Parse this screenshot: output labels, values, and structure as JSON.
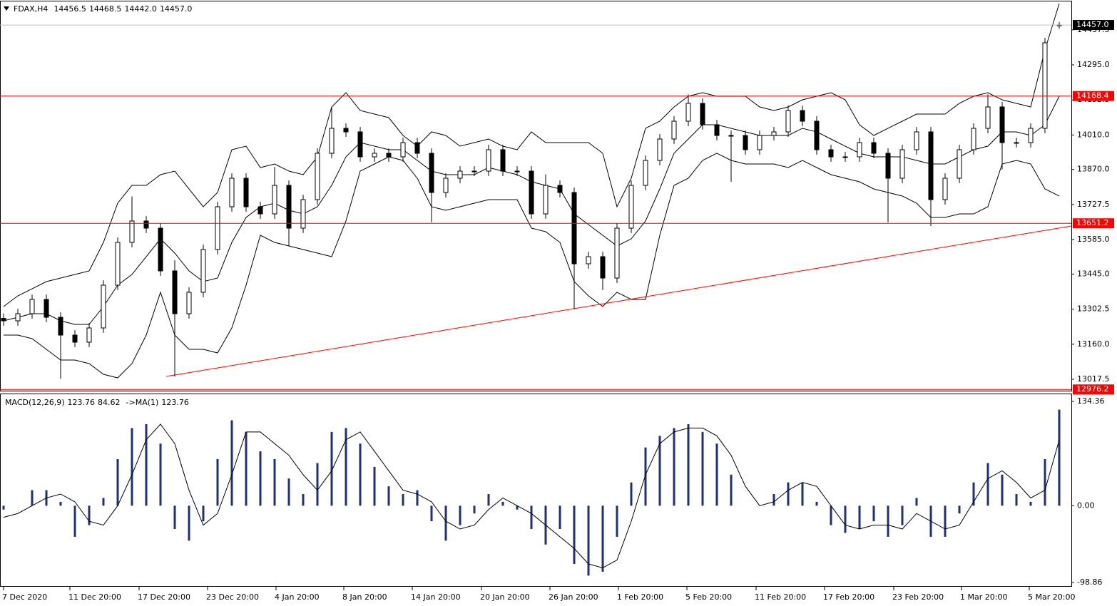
{
  "chart_data": [
    {
      "type": "candlestick",
      "title": "FDAX,H4",
      "last_labels": [
        "14456.5",
        "14468.5",
        "14442.0",
        "14457.0"
      ],
      "open": [
        13265.0,
        13255.0,
        13283.9,
        13341.9,
        13269.5,
        13197.0,
        13168.1,
        13226.0,
        13399.8,
        13573.6,
        13660.6,
        13631.6,
        13457.8,
        13283.9,
        13370.9,
        13544.7,
        13718.5,
        13834.4,
        13718.5,
        13689.5,
        13805.4,
        13631.6,
        13747.5,
        13935.8,
        14037.2,
        14022.7,
        13921.3,
        13935.8,
        13921.3,
        13979.2,
        13935.8,
        13776.4,
        13834.4,
        13863.3,
        13863.3,
        13950.3,
        13863.3,
        13863.3,
        13689.5,
        13805.4,
        13776.4,
        13486.7,
        13515.7,
        13428.8,
        13631.6,
        13805.4,
        13906.8,
        13993.7,
        14066.1,
        14138.6,
        14051.7,
        14008.2,
        14008.2,
        13950.3,
        14008.2,
        14022.7,
        14109.6,
        14066.1,
        13950.3,
        13921.3,
        13921.3,
        13979.2,
        13935.8,
        13834.4,
        13950.3,
        14022.7,
        13747.5,
        13834.4,
        13950.3,
        14037.2,
        14124.1,
        13979.2,
        13979.2,
        14037.2,
        14456.5
      ],
      "high": [
        13285.0,
        13303.9,
        13361.9,
        13361.9,
        13289.5,
        13217.0,
        13246.0,
        13419.8,
        13593.6,
        13760.0,
        13680.6,
        13651.6,
        13501.0,
        13390.9,
        13564.7,
        13738.5,
        13854.4,
        13854.4,
        13738.5,
        13880.0,
        13825.4,
        13767.5,
        13955.8,
        14124.0,
        14057.2,
        14042.7,
        13955.8,
        13955.8,
        13999.2,
        13999.2,
        13955.8,
        13854.4,
        13883.3,
        13883.3,
        13970.3,
        13970.3,
        13883.3,
        13883.3,
        13850.0,
        13825.4,
        13796.4,
        13535.7,
        13535.7,
        13651.6,
        13825.4,
        13926.8,
        14013.7,
        14086.1,
        14175.0,
        14158.6,
        14071.7,
        14028.2,
        14028.2,
        14028.2,
        14042.7,
        14129.6,
        14129.6,
        14086.1,
        13970.3,
        13941.3,
        13999.2,
        13999.2,
        13955.8,
        13970.3,
        14042.7,
        14042.7,
        13854.4,
        13970.3,
        14057.2,
        14175.0,
        14144.1,
        13999.2,
        14057.2,
        14404.8,
        14468.5
      ],
      "low": [
        13235.0,
        13235.0,
        13263.9,
        13249.5,
        13020.0,
        13148.1,
        13148.1,
        13206.0,
        13379.8,
        13553.6,
        13611.6,
        13437.8,
        13029.0,
        13263.9,
        13350.9,
        13524.7,
        13698.5,
        13698.5,
        13669.5,
        13669.5,
        13559.0,
        13611.6,
        13727.5,
        13915.8,
        14002.7,
        13901.3,
        13901.3,
        13901.3,
        13901.3,
        13915.8,
        13655.0,
        13756.4,
        13814.4,
        13843.3,
        13843.3,
        13843.3,
        13843.3,
        13669.5,
        13669.5,
        13756.4,
        13302.0,
        13466.7,
        13380.0,
        13408.8,
        13611.6,
        13785.4,
        13886.8,
        13973.7,
        14046.1,
        14031.7,
        13988.2,
        13820.0,
        13930.3,
        13930.3,
        13988.2,
        14002.7,
        14046.1,
        13930.3,
        13901.3,
        13901.3,
        13901.3,
        13915.8,
        13655.0,
        13814.4,
        13930.3,
        13640.0,
        13727.5,
        13814.4,
        13930.3,
        14017.2,
        13870.0,
        13959.2,
        13959.2,
        14017.2,
        14442.0
      ],
      "close": [
        13255.0,
        13283.9,
        13341.9,
        13269.5,
        13197.0,
        13168.1,
        13226.0,
        13399.8,
        13573.6,
        13660.6,
        13631.6,
        13457.8,
        13283.9,
        13370.9,
        13544.7,
        13718.5,
        13834.4,
        13718.5,
        13689.5,
        13805.4,
        13631.6,
        13747.5,
        13935.8,
        14037.2,
        14022.7,
        13921.3,
        13935.8,
        13921.3,
        13979.2,
        13935.8,
        13776.4,
        13834.4,
        13863.3,
        13863.3,
        13950.3,
        13863.3,
        13863.3,
        13689.5,
        13805.4,
        13776.4,
        13486.7,
        13515.7,
        13428.8,
        13631.6,
        13805.4,
        13906.8,
        13993.7,
        14066.1,
        14138.6,
        14051.7,
        14008.2,
        14008.2,
        13950.3,
        14008.2,
        14022.7,
        14109.6,
        14066.1,
        13950.3,
        13921.3,
        13921.3,
        13979.2,
        13935.8,
        13834.4,
        13950.3,
        14022.7,
        13747.5,
        13834.4,
        13950.3,
        14037.2,
        14124.1,
        13979.2,
        13979.2,
        14037.2,
        14384.8,
        14457.0
      ],
      "bands": {
        "upper": [
          13312.9,
          13356.4,
          13385.3,
          13414.3,
          13428.8,
          13443.3,
          13457.8,
          13573.6,
          13733.0,
          13805.4,
          13805.4,
          13848.9,
          13863.3,
          13790.9,
          13718.5,
          13776.4,
          13950.3,
          13964.7,
          13877.8,
          13892.3,
          13863.3,
          13848.9,
          13921.3,
          14124.1,
          14182.0,
          14109.6,
          14095.1,
          14080.6,
          14008.2,
          13964.7,
          14022.7,
          14008.2,
          13964.7,
          13979.2,
          13993.7,
          13964.7,
          13950.3,
          14022.7,
          13979.2,
          13979.2,
          13979.2,
          13979.2,
          13935.8,
          13718.5,
          13834.4,
          14037.2,
          14066.1,
          14124.1,
          14167.5,
          14182.0,
          14167.5,
          14167.5,
          14167.5,
          14124.1,
          14109.6,
          14124.1,
          14153.0,
          14167.5,
          14182.0,
          14153.0,
          14051.7,
          14008.2,
          14037.2,
          14066.1,
          14095.1,
          14095.1,
          14095.1,
          14138.6,
          14167.5,
          14182.0,
          14153.0,
          14138.6,
          14124.1,
          14355.8,
          14544.1
        ],
        "middle": [
          13255.0,
          13269.5,
          13283.9,
          13283.9,
          13255.0,
          13240.5,
          13240.5,
          13312.9,
          13399.8,
          13443.3,
          13515.7,
          13588.1,
          13530.2,
          13457.8,
          13414.3,
          13428.8,
          13573.6,
          13675.0,
          13718.5,
          13733.0,
          13704.0,
          13689.5,
          13718.5,
          13805.4,
          13921.3,
          13979.2,
          13964.7,
          13950.3,
          13950.3,
          13906.8,
          13863.3,
          13848.9,
          13848.9,
          13848.9,
          13877.8,
          13863.3,
          13848.9,
          13819.9,
          13805.4,
          13790.9,
          13689.5,
          13646.1,
          13602.6,
          13559.2,
          13588.1,
          13660.6,
          13790.9,
          13935.8,
          13993.7,
          14051.7,
          14051.7,
          14037.2,
          14022.7,
          14008.2,
          14008.2,
          14008.2,
          14037.2,
          14022.7,
          13993.7,
          13964.7,
          13935.8,
          13921.3,
          13921.3,
          13921.3,
          13906.8,
          13892.3,
          13892.3,
          13921.3,
          13950.3,
          13964.7,
          14022.7,
          14022.7,
          14008.2,
          14051.7,
          14167.5
        ],
        "lower": [
          13197.0,
          13197.0,
          13182.6,
          13139.1,
          13095.6,
          13095.6,
          13081.2,
          13037.7,
          13023.2,
          13081.2,
          13197.0,
          13370.9,
          13197.0,
          13139.1,
          13139.1,
          13124.6,
          13226.0,
          13399.8,
          13602.6,
          13573.6,
          13559.2,
          13544.7,
          13530.2,
          13515.7,
          13660.6,
          13863.3,
          13892.3,
          13921.3,
          13906.8,
          13834.4,
          13718.5,
          13704.0,
          13718.5,
          13733.0,
          13747.5,
          13747.5,
          13747.5,
          13631.6,
          13617.1,
          13573.6,
          13414.3,
          13356.4,
          13312.9,
          13370.9,
          13341.9,
          13341.9,
          13602.6,
          13805.4,
          13834.4,
          13906.8,
          13935.8,
          13906.8,
          13892.3,
          13892.3,
          13892.3,
          13877.8,
          13906.8,
          13877.8,
          13848.9,
          13834.4,
          13819.9,
          13790.9,
          13776.4,
          13762.0,
          13733.0,
          13675.0,
          13675.0,
          13689.5,
          13689.5,
          13718.5,
          13892.3,
          13906.8,
          13892.3,
          13790.9,
          13762.0
        ]
      },
      "band_color": "#000000",
      "up_color": "#ffffff",
      "down_color": "#000000",
      "xlim": [
        -0.25,
        74.85
      ],
      "ylim": [
        12971.1,
        14552.8
      ],
      "yticks": [
        {
          "value": 13017.5,
          "label": "13017.5"
        },
        {
          "value": 13160,
          "label": "13160.0"
        },
        {
          "value": 13302.5,
          "label": "13302.5"
        },
        {
          "value": 13445,
          "label": "13445.0"
        },
        {
          "value": 13585,
          "label": "13585.0"
        },
        {
          "value": 13727.5,
          "label": "13727.5"
        },
        {
          "value": 13870,
          "label": "13870.0"
        },
        {
          "value": 14010,
          "label": "14010.0"
        },
        {
          "value": 14152.5,
          "label": "14152.5"
        },
        {
          "value": 14295,
          "label": "14295.0"
        },
        {
          "value": 14437.5,
          "label": "14437.5"
        }
      ],
      "xticks": [
        {
          "value": 0,
          "label": "7 Dec 2020"
        },
        {
          "value": 4.65,
          "label": "11 Dec 20:00"
        },
        {
          "value": 9.5,
          "label": "17 Dec 20:00"
        },
        {
          "value": 14.3,
          "label": "23 Dec 20:00"
        },
        {
          "value": 19.1,
          "label": "4 Jan 20:00"
        },
        {
          "value": 23.85,
          "label": "8 Jan 20:00"
        },
        {
          "value": 28.65,
          "label": "14 Jan 20:00"
        },
        {
          "value": 33.5,
          "label": "20 Jan 20:00"
        },
        {
          "value": 38.3,
          "label": "26 Jan 20:00"
        },
        {
          "value": 43.1,
          "label": "1 Feb 20:00"
        },
        {
          "value": 47.9,
          "label": "5 Feb 20:00"
        },
        {
          "value": 52.75,
          "label": "11 Feb 20:00"
        },
        {
          "value": 57.55,
          "label": "17 Feb 20:00"
        },
        {
          "value": 62.4,
          "label": "23 Feb 20:00"
        },
        {
          "value": 67.15,
          "label": "1 Mar 20:00"
        },
        {
          "value": 71.9,
          "label": "5 Mar 20:00"
        }
      ],
      "levels": [
        {
          "value": 14457.0,
          "label": "14457.0",
          "color": "#000000",
          "line_color": "#c0c0c0"
        },
        {
          "value": 14168.4,
          "label": "14168.4",
          "color": "#ff0000",
          "line_color": "#ff0000"
        },
        {
          "value": 13651.2,
          "label": "13651.2",
          "color": "#ff0000",
          "line_color": "#ff0000"
        },
        {
          "value": 12976.2,
          "label": "12976.2",
          "color": "#ff0000",
          "line_color": "#ff0000"
        }
      ],
      "trendline": {
        "x": [
          11.4,
          74.85
        ],
        "y": [
          13029.0,
          13640.3
        ],
        "color": "#ff0000"
      }
    },
    {
      "type": "macd",
      "title": "MACD(12,26,9)",
      "signal_label": "->MA(1)",
      "values": [
        -5,
        0,
        20,
        20,
        5,
        -40,
        -25,
        10,
        60,
        100,
        105,
        80,
        -30,
        -45,
        -20,
        60,
        110,
        95,
        70,
        60,
        35,
        15,
        55,
        95,
        100,
        80,
        50,
        25,
        15,
        20,
        -20,
        -45,
        -25,
        -10,
        15,
        5,
        -5,
        -30,
        -50,
        -30,
        -75,
        -90,
        -85,
        -40,
        30,
        75,
        90,
        100,
        105,
        95,
        80,
        40,
        0,
        0,
        15,
        30,
        30,
        5,
        -25,
        -35,
        -30,
        -20,
        -40,
        -25,
        10,
        -40,
        -40,
        -10,
        30,
        55,
        40,
        15,
        5,
        60,
        123.76
      ],
      "signal": [
        -15,
        -10,
        0,
        10,
        15,
        5,
        -20,
        -25,
        0,
        40,
        85,
        105,
        80,
        20,
        -25,
        -10,
        40,
        95,
        95,
        80,
        65,
        40,
        20,
        45,
        85,
        95,
        70,
        45,
        20,
        15,
        5,
        -20,
        -30,
        -25,
        -5,
        10,
        0,
        -10,
        -25,
        -40,
        -55,
        -75,
        -80,
        -70,
        -20,
        40,
        80,
        95,
        100,
        100,
        90,
        65,
        25,
        0,
        5,
        20,
        30,
        25,
        0,
        -25,
        -30,
        -25,
        -25,
        -30,
        -10,
        -20,
        -30,
        -25,
        5,
        35,
        45,
        30,
        10,
        20,
        84.62
      ],
      "color": "#1f2f7a",
      "signal_color": "#000000",
      "ylim": [
        -98.86,
        134.36
      ],
      "yticks": [
        134.36,
        {
          "value": 0,
          "label": "0.00"
        },
        -98.86
      ]
    }
  ]
}
